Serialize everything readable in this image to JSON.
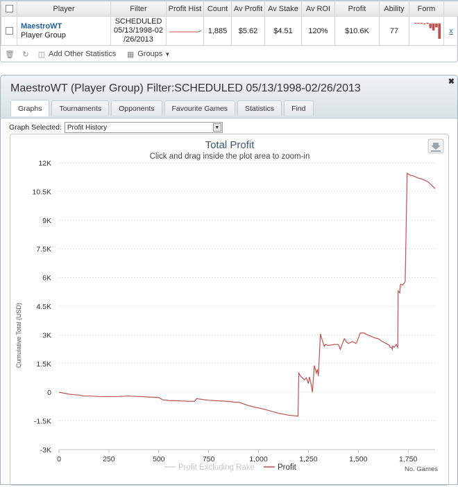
{
  "stats_table": {
    "headers": [
      "Player",
      "Filter",
      "Profit Hist",
      "Count",
      "Av Profit",
      "Av Stake",
      "Av ROI",
      "Profit",
      "Ability",
      "Form"
    ],
    "row": {
      "player_name": "MaestroWT",
      "player_group": "Player Group",
      "filter_lines": [
        "SCHEDULED",
        "05/13/1998-02",
        "/26/2013"
      ],
      "count": "1,885",
      "av_profit": "$5.62",
      "av_stake": "$4.51",
      "av_roi": "120%",
      "profit": "$10.6K",
      "ability": "77",
      "remove_label": "x"
    },
    "form_values": [
      0.05,
      0.04,
      0.03,
      -0.05,
      0.02,
      -0.3,
      -0.45,
      -0.25,
      -1.0
    ]
  },
  "toolbar": {
    "add_stats_label": "Add Other Statistics",
    "groups_label": "Groups"
  },
  "panel": {
    "title": "MaestroWT (Player Group) Filter:SCHEDULED 05/13/1998-02/26/2013",
    "tabs": [
      "Graphs",
      "Tournaments",
      "Opponents",
      "Favourite Games",
      "Statistics",
      "Find"
    ],
    "graph_selected_label": "Graph Selected:",
    "graph_selected_value": "Profit History"
  },
  "colors": {
    "profit_line": "#c0504d",
    "rake_line": "#d0d0d0",
    "title": "#3e576f"
  },
  "chart_data": {
    "type": "line",
    "title": "Total Profit",
    "subtitle": "Click and drag inside the plot area to zoom-in",
    "ylabel": "Cumulative Total (USD)",
    "xlabel": "No. Games",
    "ylim": [
      -3000,
      12000
    ],
    "xlim": [
      0,
      1885
    ],
    "y_ticks": [
      "-3K",
      "-1.5K",
      "0",
      "1.5K",
      "3K",
      "4.5K",
      "6K",
      "7.5K",
      "9K",
      "10.5K",
      "12K"
    ],
    "y_tick_values": [
      -3000,
      -1500,
      0,
      1500,
      3000,
      4500,
      6000,
      7500,
      9000,
      10500,
      12000
    ],
    "x_ticks": [
      "0",
      "250",
      "500",
      "750",
      "1,000",
      "1,250",
      "1,500",
      "1,750"
    ],
    "x_tick_values": [
      0,
      250,
      500,
      750,
      1000,
      1250,
      1500,
      1750
    ],
    "legend": [
      "Profit Excluding Rake",
      "Profit"
    ],
    "series": [
      {
        "name": "Profit",
        "x": [
          0,
          50,
          100,
          120,
          150,
          200,
          250,
          300,
          350,
          400,
          450,
          500,
          520,
          550,
          600,
          650,
          680,
          690,
          700,
          750,
          800,
          850,
          880,
          900,
          950,
          980,
          1000,
          1050,
          1100,
          1150,
          1198,
          1202,
          1210,
          1230,
          1240,
          1250,
          1255,
          1262,
          1270,
          1280,
          1290,
          1295,
          1300,
          1310,
          1320,
          1330,
          1335,
          1350,
          1380,
          1400,
          1410,
          1430,
          1440,
          1450,
          1470,
          1480,
          1490,
          1510,
          1530,
          1545,
          1560,
          1580,
          1600,
          1620,
          1640,
          1655,
          1660,
          1665,
          1670,
          1672,
          1680,
          1690,
          1698,
          1700,
          1708,
          1710,
          1715,
          1720,
          1730,
          1735,
          1745,
          1760,
          1780,
          1800,
          1820,
          1850,
          1870,
          1885
        ],
        "y": [
          0,
          -100,
          -150,
          -200,
          -200,
          -220,
          -230,
          -220,
          -200,
          -220,
          -250,
          -280,
          -400,
          -430,
          -450,
          -470,
          -480,
          -330,
          -350,
          -420,
          -450,
          -480,
          -520,
          -520,
          -700,
          -780,
          -820,
          -950,
          -1100,
          -1200,
          -1250,
          1000,
          850,
          650,
          750,
          450,
          800,
          500,
          0,
          1400,
          1000,
          1200,
          850,
          3050,
          2700,
          2400,
          2500,
          2450,
          2500,
          2500,
          2250,
          2800,
          2650,
          2550,
          2650,
          2600,
          2550,
          3100,
          3100,
          3000,
          2950,
          2850,
          2800,
          2650,
          2550,
          2450,
          2350,
          2350,
          2250,
          2400,
          2350,
          2500,
          2350,
          5300,
          5200,
          5600,
          5650,
          5600,
          5700,
          5800,
          11450,
          11350,
          11300,
          11200,
          11150,
          11000,
          10800,
          10650
        ]
      },
      {
        "name": "Profit Excluding Rake",
        "x": [],
        "y": []
      }
    ]
  }
}
